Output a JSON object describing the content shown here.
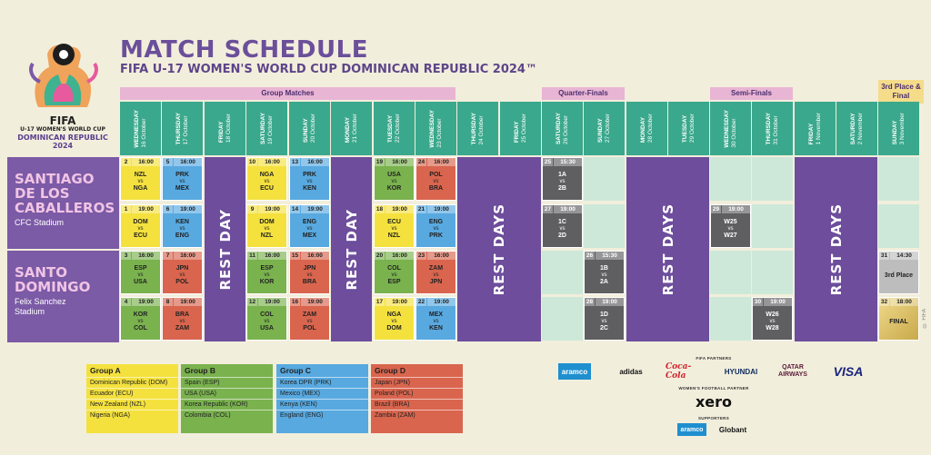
{
  "logo": {
    "line1": "FIFA",
    "line2": "U-17 WOMEN'S WORLD CUP",
    "line3": "DOMINICAN REPUBLIC 2024"
  },
  "title": "MATCH SCHEDULE",
  "subtitle": "FIFA U-17 WOMEN'S WORLD CUP DOMINICAN REPUBLIC 2024™",
  "stages": {
    "group": "Group Matches",
    "qf": "Quarter-Finals",
    "sf": "Semi-Finals",
    "final_l1": "3rd Place &",
    "final_l2": "Final"
  },
  "days": [
    {
      "dow": "WEDNESDAY",
      "date": "16 October"
    },
    {
      "dow": "THURSDAY",
      "date": "17 October"
    },
    {
      "dow": "FRIDAY",
      "date": "18 October"
    },
    {
      "dow": "SATURDAY",
      "date": "19 October"
    },
    {
      "dow": "SUNDAY",
      "date": "20 October"
    },
    {
      "dow": "MONDAY",
      "date": "21 October"
    },
    {
      "dow": "TUESDAY",
      "date": "22 October"
    },
    {
      "dow": "WEDNESDAY",
      "date": "23 October"
    },
    {
      "dow": "THURSDAY",
      "date": "24 October"
    },
    {
      "dow": "FRIDAY",
      "date": "25 October"
    },
    {
      "dow": "SATURDAY",
      "date": "26 October"
    },
    {
      "dow": "SUNDAY",
      "date": "27 October"
    },
    {
      "dow": "MONDAY",
      "date": "28 October"
    },
    {
      "dow": "TUESDAY",
      "date": "29 October"
    },
    {
      "dow": "WEDNESDAY",
      "date": "30 October"
    },
    {
      "dow": "THURSDAY",
      "date": "31 October"
    },
    {
      "dow": "FRIDAY",
      "date": "1 November"
    },
    {
      "dow": "SATURDAY",
      "date": "2 November"
    },
    {
      "dow": "SUNDAY",
      "date": "3 November"
    }
  ],
  "venues": [
    {
      "l1": "SANTIAGO",
      "l2": "DE LOS",
      "l3": "CABALLEROS",
      "stadium1": "CFC Stadium",
      "stadium2": ""
    },
    {
      "l1": "SANTO",
      "l2": "DOMINGO",
      "l3": "",
      "stadium1": "Felix Sanchez",
      "stadium2": "Stadium"
    }
  ],
  "rest": {
    "day": "REST DAY",
    "days": "REST DAYS"
  },
  "vs": "vs",
  "matches": [
    {
      "no": "2",
      "time": "16:00",
      "t1": "NZL",
      "t2": "NGA"
    },
    {
      "no": "5",
      "time": "16:00",
      "t1": "PRK",
      "t2": "MEX"
    },
    {
      "no": "10",
      "time": "16:00",
      "t1": "NGA",
      "t2": "ECU"
    },
    {
      "no": "13",
      "time": "16:00",
      "t1": "PRK",
      "t2": "KEN"
    },
    {
      "no": "19",
      "time": "16:00",
      "t1": "USA",
      "t2": "KOR"
    },
    {
      "no": "24",
      "time": "16:00",
      "t1": "POL",
      "t2": "BRA"
    },
    {
      "no": "25",
      "time": "15:30",
      "t1": "1A",
      "t2": "2B"
    },
    {
      "no": "1",
      "time": "19:00",
      "t1": "DOM",
      "t2": "ECU"
    },
    {
      "no": "6",
      "time": "19:00",
      "t1": "KEN",
      "t2": "ENG"
    },
    {
      "no": "9",
      "time": "19:00",
      "t1": "DOM",
      "t2": "NZL"
    },
    {
      "no": "14",
      "time": "19:00",
      "t1": "ENG",
      "t2": "MEX"
    },
    {
      "no": "18",
      "time": "19:00",
      "t1": "ECU",
      "t2": "NZL"
    },
    {
      "no": "21",
      "time": "19:00",
      "t1": "ENG",
      "t2": "PRK"
    },
    {
      "no": "27",
      "time": "19:00",
      "t1": "1C",
      "t2": "2D"
    },
    {
      "no": "29",
      "time": "19:00",
      "t1": "W25",
      "t2": "W27"
    },
    {
      "no": "3",
      "time": "16:00",
      "t1": "ESP",
      "t2": "USA"
    },
    {
      "no": "7",
      "time": "16:00",
      "t1": "JPN",
      "t2": "POL"
    },
    {
      "no": "11",
      "time": "16:00",
      "t1": "ESP",
      "t2": "KOR"
    },
    {
      "no": "15",
      "time": "16:00",
      "t1": "JPN",
      "t2": "BRA"
    },
    {
      "no": "20",
      "time": "16:00",
      "t1": "COL",
      "t2": "ESP"
    },
    {
      "no": "23",
      "time": "16:00",
      "t1": "ZAM",
      "t2": "JPN"
    },
    {
      "no": "26",
      "time": "15:30",
      "t1": "1B",
      "t2": "2A"
    },
    {
      "no": "31",
      "time": "14:30",
      "t1": "3rd Place",
      "t2": ""
    },
    {
      "no": "4",
      "time": "19:00",
      "t1": "KOR",
      "t2": "COL"
    },
    {
      "no": "8",
      "time": "19:00",
      "t1": "BRA",
      "t2": "ZAM"
    },
    {
      "no": "12",
      "time": "19:00",
      "t1": "COL",
      "t2": "USA"
    },
    {
      "no": "16",
      "time": "19:00",
      "t1": "ZAM",
      "t2": "POL"
    },
    {
      "no": "17",
      "time": "19:00",
      "t1": "NGA",
      "t2": "DOM"
    },
    {
      "no": "22",
      "time": "19:00",
      "t1": "MEX",
      "t2": "KEN"
    },
    {
      "no": "28",
      "time": "19:00",
      "t1": "1D",
      "t2": "2C"
    },
    {
      "no": "30",
      "time": "19:00",
      "t1": "W26",
      "t2": "W28"
    },
    {
      "no": "32",
      "time": "18:00",
      "t1": "FINAL",
      "t2": ""
    }
  ],
  "groups": [
    {
      "name": "Group A",
      "teams": [
        "Dominican Republic (DOM)",
        "Ecuador (ECU)",
        "New Zealand (NZL)",
        "Nigeria (NGA)"
      ]
    },
    {
      "name": "Group B",
      "teams": [
        "Spain (ESP)",
        "USA (USA)",
        "Korea Republic (KOR)",
        "Colombia (COL)"
      ]
    },
    {
      "name": "Group C",
      "teams": [
        "Korea DPR (PRK)",
        "Mexico (MEX)",
        "Kenya (KEN)",
        "England (ENG)"
      ]
    },
    {
      "name": "Group D",
      "teams": [
        "Japan (JPN)",
        "Poland (POL)",
        "Brazil (BRA)",
        "Zambia (ZAM)"
      ]
    }
  ],
  "partners": {
    "fifa_label": "FIFA PARTNERS",
    "fifa": [
      "aramco",
      "adidas",
      "Coca-Cola",
      "HYUNDAI",
      "QATAR AIRWAYS",
      "VISA"
    ],
    "wf_label": "WOMEN'S FOOTBALL PARTNER",
    "wf": "xero",
    "sup_label": "SUPPORTERS",
    "sup": [
      "aramco",
      "Globant"
    ]
  },
  "copyright": "© FIFA",
  "colors": {
    "purple": "#6d4d9c",
    "teal": "#3aa88c",
    "groupA": "#f4e13e",
    "groupB": "#7ab24e",
    "groupC": "#58a9e0",
    "groupD": "#d9654e",
    "knockout": "#5f5f61"
  }
}
